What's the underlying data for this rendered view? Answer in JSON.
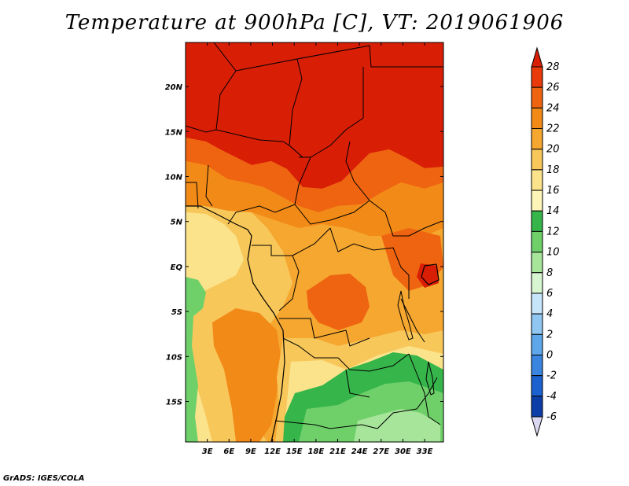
{
  "title": "Temperature at 900hPa [C], VT: 2019061906",
  "credit": "GrADS: IGES/COLA",
  "map": {
    "lat_labels": [
      "20N",
      "15N",
      "10N",
      "5N",
      "EQ",
      "5S",
      "10S",
      "15S"
    ],
    "lat_values": [
      20,
      15,
      10,
      5,
      0,
      -5,
      -10,
      -15
    ],
    "lon_labels": [
      "3E",
      "6E",
      "9E",
      "12E",
      "15E",
      "18E",
      "21E",
      "24E",
      "27E",
      "30E",
      "33E"
    ],
    "lon_values": [
      3,
      6,
      9,
      12,
      15,
      18,
      21,
      24,
      27,
      30,
      33
    ],
    "lat_range": [
      -19.5,
      24.9
    ],
    "lon_range": [
      0,
      35.6
    ]
  },
  "colorbar": {
    "labels": [
      "28",
      "26",
      "24",
      "22",
      "20",
      "18",
      "16",
      "14",
      "12",
      "10",
      "8",
      "6",
      "4",
      "2",
      "0",
      "-2",
      "-4",
      "-6"
    ],
    "colors": [
      "#d81e05",
      "#e83a0a",
      "#ef6410",
      "#f28a18",
      "#f5a730",
      "#f8c75a",
      "#fbe38c",
      "#fdf5b8",
      "#36b54a",
      "#6fd06a",
      "#a6e59a",
      "#d6f5d0",
      "#c6e4fa",
      "#8fc7f2",
      "#5ea7ea",
      "#3a85e0",
      "#1b61d0",
      "#0d3ea8",
      "#0a1d80",
      "#dcd7f0"
    ]
  },
  "chart_data": {
    "type": "heatmap",
    "title": "Temperature at 900hPa [C], VT: 2019061906",
    "variable": "Temperature",
    "units": "C",
    "level": "900hPa",
    "valid_time": "2019061906",
    "x_ticks": [
      "3E",
      "6E",
      "9E",
      "12E",
      "15E",
      "18E",
      "21E",
      "24E",
      "27E",
      "30E",
      "33E"
    ],
    "y_ticks": [
      "20N",
      "15N",
      "10N",
      "5N",
      "EQ",
      "5S",
      "10S",
      "15S"
    ],
    "color_levels": [
      -6,
      -4,
      -2,
      0,
      2,
      4,
      6,
      8,
      10,
      12,
      14,
      16,
      18,
      20,
      22,
      24,
      26,
      28
    ]
  }
}
